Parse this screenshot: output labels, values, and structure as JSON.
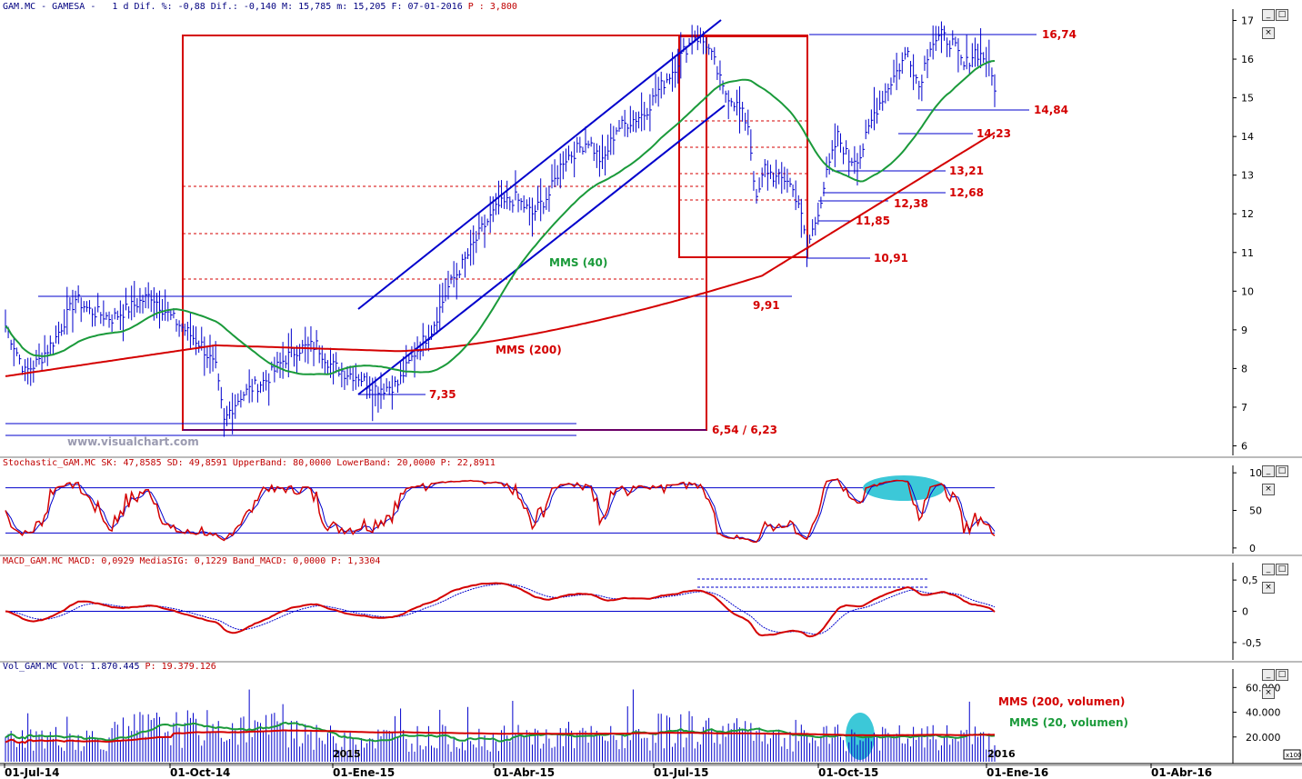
{
  "headers": {
    "main": "GAM.MC - GAMESA -   1 d Dif. %: -0,88 Dif.: -0,140 M: 15,785 m: 15,205 F: 07-01-2016 ",
    "main_p": "P : 3,800",
    "stoch": "Stochastic_GAM.MC SK: 47,8585 SD: 49,8591 UpperBand: 80,0000 LowerBand: 20,0000 ",
    "stoch_p": "P: 22,8911",
    "macd": "MACD_GAM.MC MACD: 0,0929 MediaSIG: 0,1229 Band_MACD: 0,0000 ",
    "macd_p": "P: 1,3304",
    "vol": "Vol_GAM.MC Vol: 1.870.445 ",
    "vol_p": "P: 19.379.126"
  },
  "watermark": "www.visualchart.com",
  "colors": {
    "price": "#0000cc",
    "mm40": "#1a9a3a",
    "mm200": "#d40000",
    "levels": "#d40000",
    "channel": "#0000cc",
    "highlight": "#3cc8d8"
  },
  "chart_data": [
    {
      "type": "bar",
      "name": "price",
      "x_range": [
        "2014-07-01",
        "2016-01-07"
      ],
      "x_ticks": [
        "01-Jul-14",
        "01-Oct-14",
        "01-Ene-15",
        "01-Abr-15",
        "01-Jul-15",
        "01-Oct-15",
        "01-Ene-16",
        "01-Abr-16"
      ],
      "ylim": [
        5.8,
        17.2
      ],
      "yticks": [
        6,
        7,
        8,
        9,
        10,
        11,
        12,
        13,
        14,
        15,
        16,
        17
      ],
      "anchors": [
        [
          0,
          9.1
        ],
        [
          3,
          8.6
        ],
        [
          7,
          7.9
        ],
        [
          12,
          8.2
        ],
        [
          18,
          8.8
        ],
        [
          25,
          9.8
        ],
        [
          30,
          9.5
        ],
        [
          38,
          9.3
        ],
        [
          45,
          9.6
        ],
        [
          52,
          9.9
        ],
        [
          58,
          9.4
        ],
        [
          64,
          9.0
        ],
        [
          70,
          8.6
        ],
        [
          75,
          8.0
        ],
        [
          78,
          6.6
        ],
        [
          80,
          6.9
        ],
        [
          84,
          7.3
        ],
        [
          88,
          7.5
        ],
        [
          93,
          7.7
        ],
        [
          99,
          8.2
        ],
        [
          104,
          8.5
        ],
        [
          111,
          8.6
        ],
        [
          116,
          8.1
        ],
        [
          121,
          7.9
        ],
        [
          126,
          7.8
        ],
        [
          131,
          7.5
        ],
        [
          135,
          7.5
        ],
        [
          140,
          7.6
        ],
        [
          146,
          8.4
        ],
        [
          152,
          9.0
        ],
        [
          158,
          10.1
        ],
        [
          164,
          10.8
        ],
        [
          170,
          11.6
        ],
        [
          176,
          12.2
        ],
        [
          182,
          12.4
        ],
        [
          188,
          12.0
        ],
        [
          194,
          12.5
        ],
        [
          199,
          13.4
        ],
        [
          203,
          13.6
        ],
        [
          208,
          13.9
        ],
        [
          213,
          13.3
        ],
        [
          218,
          14.2
        ],
        [
          223,
          14.4
        ],
        [
          228,
          14.6
        ],
        [
          233,
          15.2
        ],
        [
          238,
          15.7
        ],
        [
          242,
          16.2
        ],
        [
          246,
          16.6
        ],
        [
          250,
          16.4
        ],
        [
          253,
          15.9
        ],
        [
          256,
          15.2
        ],
        [
          259,
          15.0
        ],
        [
          262,
          14.7
        ],
        [
          265,
          14.3
        ],
        [
          268,
          12.3
        ],
        [
          271,
          13.2
        ],
        [
          275,
          12.9
        ],
        [
          279,
          12.9
        ],
        [
          283,
          12.3
        ],
        [
          286,
          11.1
        ],
        [
          289,
          11.8
        ],
        [
          293,
          13.0
        ],
        [
          297,
          14.0
        ],
        [
          301,
          13.4
        ],
        [
          305,
          13.5
        ],
        [
          310,
          14.6
        ],
        [
          315,
          15.3
        ],
        [
          319,
          15.8
        ],
        [
          322,
          16.2
        ],
        [
          326,
          15.3
        ],
        [
          330,
          16.4
        ],
        [
          334,
          16.6
        ],
        [
          338,
          16.4
        ],
        [
          342,
          15.8
        ],
        [
          346,
          16.2
        ],
        [
          350,
          16.0
        ],
        [
          353,
          15.3
        ]
      ],
      "bars": 353,
      "moving_average_labels": [
        "MMS (40)",
        "MMS (200)"
      ],
      "levels": [
        {
          "label": "16,74",
          "value": 16.74
        },
        {
          "label": "14,84",
          "value": 14.84
        },
        {
          "label": "14,23",
          "value": 14.23
        },
        {
          "label": "13,21",
          "value": 13.21
        },
        {
          "label": "12,68",
          "value": 12.68
        },
        {
          "label": "12,38",
          "value": 12.38
        },
        {
          "label": "11,85",
          "value": 11.85
        },
        {
          "label": "10,91",
          "value": 10.91
        },
        {
          "label": "9,91",
          "value": 9.91
        },
        {
          "label": "7,35",
          "value": 7.35
        },
        {
          "label": "6,54 / 6,23",
          "value": 6.4
        }
      ]
    },
    {
      "type": "line",
      "name": "stochastic",
      "ylim": [
        -5,
        105
      ],
      "yticks": [
        0,
        50,
        100
      ],
      "bands": [
        20,
        80
      ],
      "sk": 47.8585,
      "sd": 49.8591
    },
    {
      "type": "line",
      "name": "macd",
      "ylim": [
        -0.75,
        0.72
      ],
      "yticks": [
        0.5,
        0,
        -0.5
      ],
      "ytick_labels": [
        "0,5",
        "0",
        "-0,5"
      ],
      "macd": 0.0929,
      "signal": 0.1229
    },
    {
      "type": "bar",
      "name": "volume",
      "ylim": [
        0,
        72000
      ],
      "yticks": [
        20000,
        40000,
        60000
      ],
      "ytick_labels": [
        "20.000",
        "40.000",
        "60.000"
      ],
      "unit_label": "x100",
      "year_labels": [
        "2015",
        "2016"
      ],
      "series": [
        {
          "name": "MMS (200, volumen)"
        },
        {
          "name": "MMS (20, volumen)"
        }
      ]
    }
  ]
}
